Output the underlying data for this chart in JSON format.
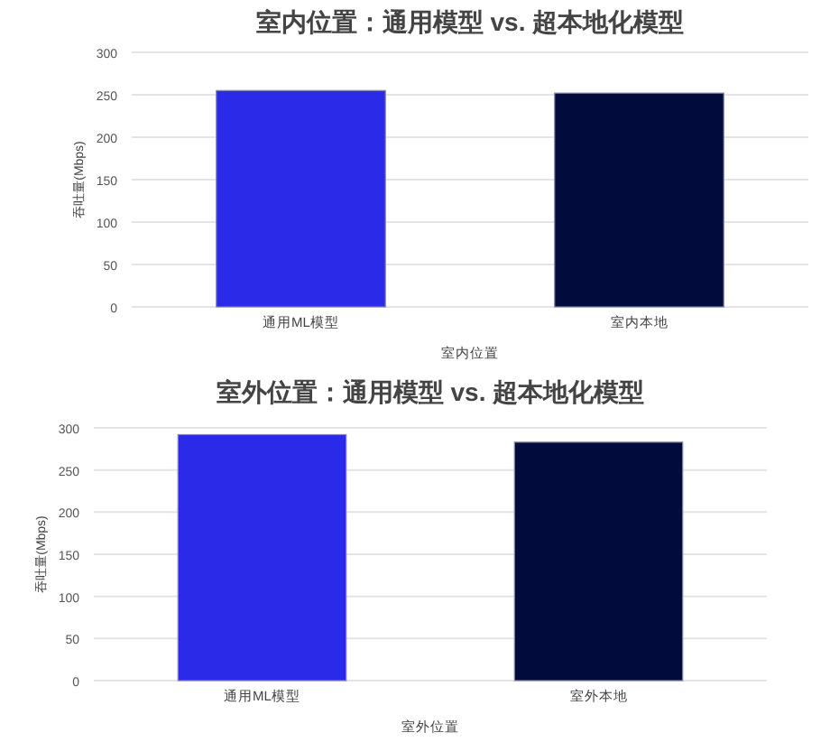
{
  "chart_data": [
    {
      "type": "bar",
      "title": "室内位置：通用模型 vs. 超本地化模型",
      "xlabel": "室内位置",
      "ylabel": "吞吐量(Mbps)",
      "categories": [
        "通用ML模型",
        "室内本地"
      ],
      "values": [
        255,
        252
      ],
      "colors": [
        "#2a2ae8",
        "#020c3c"
      ],
      "ylim": [
        0,
        300
      ],
      "yticks": [
        0,
        50,
        100,
        150,
        200,
        250,
        300
      ],
      "grid": "y"
    },
    {
      "type": "bar",
      "title": "室外位置：通用模型 vs. 超本地化模型",
      "xlabel": "室外位置",
      "ylabel": "吞吐量(Mbps)",
      "categories": [
        "通用ML模型",
        "室外本地"
      ],
      "values": [
        292,
        283
      ],
      "colors": [
        "#2a2ae8",
        "#020c3c"
      ],
      "ylim": [
        0,
        300
      ],
      "yticks": [
        0,
        50,
        100,
        150,
        200,
        250,
        300
      ],
      "grid": "y"
    }
  ]
}
